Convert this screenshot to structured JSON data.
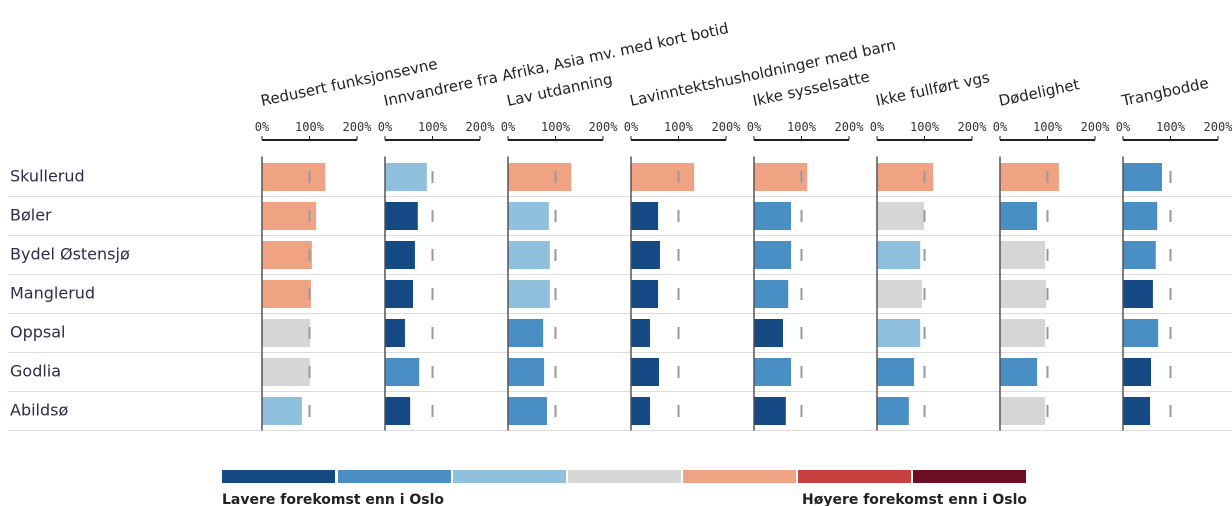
{
  "chart_data": {
    "type": "small-multiple-bar",
    "categories": [
      "Skullerud",
      "Bøler",
      "Bydel Østensjø",
      "Manglerud",
      "Oppsal",
      "Godlia",
      "Abildsø"
    ],
    "xlim": [
      0,
      200
    ],
    "xticks": [
      {
        "value": 0,
        "label": "0%"
      },
      {
        "value": 100,
        "label": "100%"
      },
      {
        "value": 200,
        "label": "200%"
      }
    ],
    "reference_value": 100,
    "series": [
      {
        "name": "Redusert funksjonsevne",
        "values": [
          133,
          114,
          105,
          103,
          101,
          101,
          84
        ],
        "colors": [
          "#f0a383",
          "#f0a383",
          "#f0a383",
          "#f0a383",
          "#d6d6d6",
          "#d6d6d6",
          "#8fc0de"
        ]
      },
      {
        "name": "Innvandrere fra Afrika, Asia mv. med kort botid",
        "values": [
          88,
          69,
          63,
          59,
          42,
          72,
          53
        ],
        "colors": [
          "#8fc0de",
          "#154a85",
          "#154a85",
          "#154a85",
          "#154a85",
          "#4a8fc4",
          "#154a85"
        ]
      },
      {
        "name": "Lav utdanning",
        "values": [
          133,
          86,
          88,
          88,
          74,
          76,
          82
        ],
        "colors": [
          "#f0a383",
          "#8fc0de",
          "#8fc0de",
          "#8fc0de",
          "#4a8fc4",
          "#4a8fc4",
          "#4a8fc4"
        ]
      },
      {
        "name": "Lavinntektshusholdninger med barn",
        "values": [
          133,
          57,
          61,
          57,
          40,
          59,
          40
        ],
        "colors": [
          "#f0a383",
          "#154a85",
          "#154a85",
          "#154a85",
          "#154a85",
          "#154a85",
          "#154a85"
        ]
      },
      {
        "name": "Ikke sysselsatte",
        "values": [
          112,
          78,
          78,
          72,
          61,
          78,
          67
        ],
        "colors": [
          "#f0a383",
          "#4a8fc4",
          "#4a8fc4",
          "#4a8fc4",
          "#154a85",
          "#4a8fc4",
          "#154a85"
        ]
      },
      {
        "name": "Ikke fullført vgs",
        "values": [
          118,
          99,
          91,
          95,
          91,
          78,
          67
        ],
        "colors": [
          "#f0a383",
          "#d6d6d6",
          "#8fc0de",
          "#d6d6d6",
          "#8fc0de",
          "#4a8fc4",
          "#4a8fc4"
        ]
      },
      {
        "name": "Dødelighet",
        "values": [
          124,
          78,
          95,
          97,
          95,
          78,
          95
        ],
        "colors": [
          "#f0a383",
          "#4a8fc4",
          "#d6d6d6",
          "#d6d6d6",
          "#d6d6d6",
          "#4a8fc4",
          "#d6d6d6"
        ]
      },
      {
        "name": "Trangbodde",
        "values": [
          82,
          72,
          69,
          63,
          74,
          59,
          57
        ],
        "colors": [
          "#4a8fc4",
          "#4a8fc4",
          "#4a8fc4",
          "#154a85",
          "#4a8fc4",
          "#154a85",
          "#154a85"
        ]
      }
    ],
    "legend": {
      "colors": [
        "#154a85",
        "#4a8fc4",
        "#8fc0de",
        "#d6d6d6",
        "#f0a383",
        "#c94040",
        "#6d0e24"
      ],
      "low_label": "Lavere forekomst enn i Oslo",
      "high_label": "Høyere forekomst enn i Oslo"
    }
  }
}
